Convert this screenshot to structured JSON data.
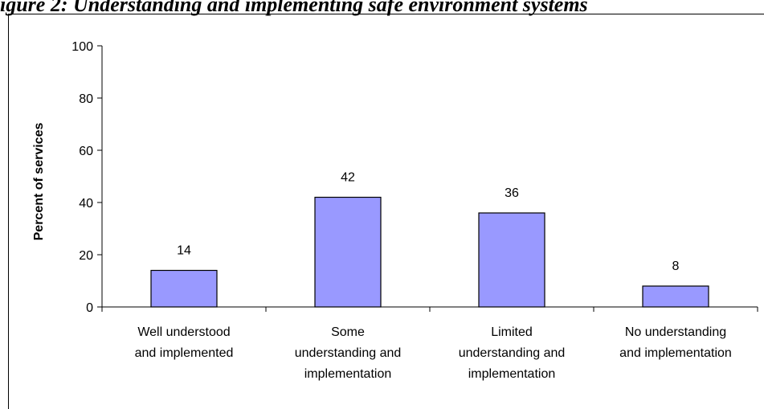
{
  "figure": {
    "title": "igure 2:  Understanding and implementing safe environment systems"
  },
  "chart_data": {
    "type": "bar",
    "title": "",
    "xlabel": "",
    "ylabel": "Percent of services",
    "categories": [
      [
        "Well understood",
        "and implemented"
      ],
      [
        "Some",
        "understanding and",
        "implementation"
      ],
      [
        "Limited",
        "understanding and",
        "implementation"
      ],
      [
        "No understanding",
        "and implementation"
      ]
    ],
    "values": [
      14,
      42,
      36,
      8
    ],
    "ylim": [
      0,
      100
    ],
    "yticks": [
      0,
      20,
      40,
      60,
      80,
      100
    ],
    "grid": false,
    "legend": "none",
    "bar_color": "#9999ff",
    "bar_border": "#000000"
  }
}
